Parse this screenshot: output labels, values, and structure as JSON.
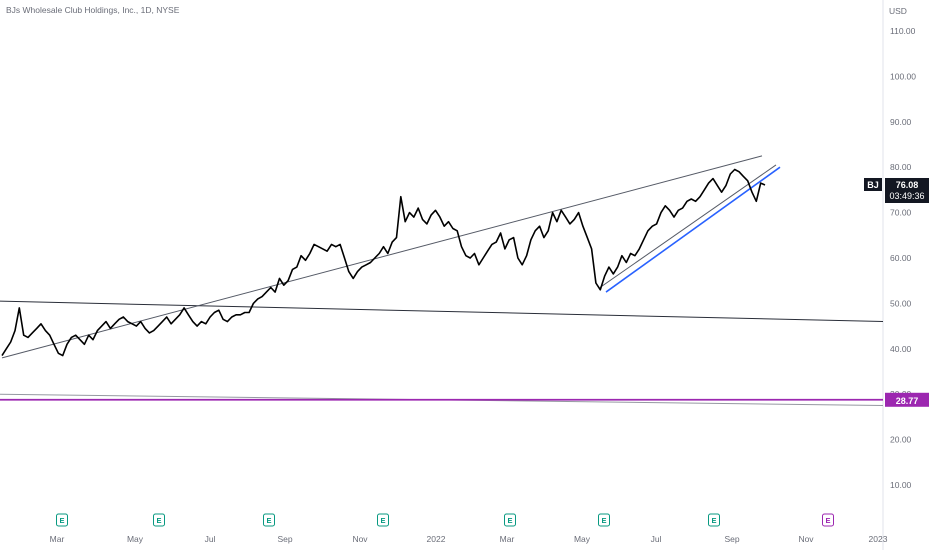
{
  "header": {
    "title": "BJs Wholesale Club Holdings, Inc., 1D, NYSE"
  },
  "chart_data": {
    "type": "line",
    "currency_label": "USD",
    "ylim": [
      5,
      115
    ],
    "y_ticks": [
      "110.00",
      "100.00",
      "90.00",
      "80.00",
      "70.00",
      "60.00",
      "50.00",
      "40.00",
      "30.00",
      "20.00",
      "10.00"
    ],
    "x_ticks": [
      "Mar",
      "May",
      "Jul",
      "Sep",
      "Nov",
      "2022",
      "Mar",
      "May",
      "Jul",
      "Sep",
      "Nov",
      "2023"
    ],
    "series": [
      {
        "values": [
          38.5,
          40,
          41.5,
          44,
          49,
          43,
          42.5,
          43.5,
          44.5,
          45.5,
          44,
          43,
          41,
          39,
          38.5,
          41,
          42.5,
          43,
          42,
          41,
          43,
          42,
          44,
          45,
          46,
          44.5,
          45.5,
          46.5,
          47,
          46,
          45.5,
          45,
          46,
          44.5,
          43.5,
          44,
          45,
          46,
          47,
          45.5,
          46.5,
          47.5,
          49,
          47.5,
          46,
          45,
          46,
          45.5,
          47,
          48,
          48.5,
          46.5,
          46,
          47,
          47.5,
          47.5,
          48,
          48,
          50,
          51,
          51.5,
          52.5,
          53.5,
          52.5,
          55.5,
          54,
          55,
          57.5,
          58,
          60.5,
          59.5,
          61,
          63,
          62.5,
          62,
          61.5,
          63,
          62.5,
          63,
          60,
          57,
          55.5,
          57,
          58,
          58.5,
          59,
          60,
          61,
          62.5,
          61,
          63.5,
          64.5,
          73.5,
          68,
          70,
          69,
          71,
          68.5,
          67.5,
          69.5,
          70.5,
          69,
          67,
          68,
          66.5,
          66,
          62.5,
          60.5,
          60,
          61,
          58.5,
          60,
          61.5,
          63,
          63.5,
          65.5,
          62,
          64,
          64.5,
          60,
          58.5,
          60.5,
          64,
          66,
          67,
          64.5,
          66,
          70,
          68,
          70.5,
          69,
          67.5,
          68.5,
          70,
          67,
          64.5,
          62,
          54.5,
          53,
          56,
          58,
          56.5,
          58,
          60.5,
          59,
          61,
          60.5,
          62,
          64,
          66,
          67,
          67.5,
          70,
          71.5,
          70.5,
          69,
          70.5,
          71,
          72.5,
          73,
          72.5,
          73.5,
          75,
          76.5,
          77.5,
          76,
          74.5,
          76,
          78.5,
          79.5,
          79,
          78,
          77,
          74.5,
          72.5,
          76.5,
          76.08
        ]
      }
    ],
    "last_price": {
      "symbol": "BJ",
      "price": "76.08",
      "countdown": "03:49:36"
    },
    "horizontal_level": {
      "price": "28.77"
    },
    "earnings_markers": [
      "E",
      "E",
      "E",
      "E",
      "E",
      "E",
      "E",
      "E",
      "E"
    ]
  }
}
